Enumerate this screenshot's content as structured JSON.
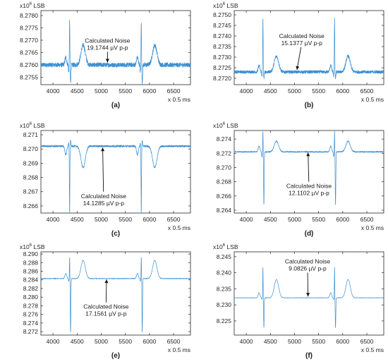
{
  "chart_data": [
    {
      "type": "line",
      "panel_label": "(a)",
      "scale_label": "x10",
      "scale_exp": "6",
      "unit_label": "LSB",
      "xlabel": "x 0.5 ms",
      "xlim": [
        3750,
        6850
      ],
      "ylim": [
        8.2752,
        8.2782
      ],
      "xticks": [
        4000,
        4500,
        5000,
        5500,
        6000,
        6500
      ],
      "xtick_labels": [
        "4000",
        "4500",
        "5000",
        "5500",
        "6000",
        "6500"
      ],
      "yticks": [
        8.2755,
        8.276,
        8.2765,
        8.277,
        8.2775,
        8.278
      ],
      "ytick_labels": [
        "8.2755",
        "8.2760",
        "8.2765",
        "8.2770",
        "8.2775",
        "8.2780"
      ],
      "baseline": 8.276,
      "noise_pp": 0.00019,
      "beats": [
        4345,
        5830
      ],
      "components": [
        {
          "dt": -80,
          "amp": 0.0003,
          "w": 18
        },
        {
          "dt": -20,
          "amp": -0.0003,
          "w": 6
        },
        {
          "dt": 0,
          "amp": 0.0018,
          "w": 5
        },
        {
          "dt": 20,
          "amp": -0.0007,
          "w": 7
        },
        {
          "dt": 280,
          "amp": 0.0008,
          "w": 45
        }
      ],
      "annotation": {
        "line1": "Calculated Noise",
        "line2": "19.1744 µV p-p",
        "x": 5130,
        "y": 8.2769,
        "arrow_x": 5130,
        "arrow_y": 8.2761
      },
      "color": "#3a8fd4"
    },
    {
      "type": "line",
      "panel_label": "(b)",
      "scale_label": "x10",
      "scale_exp": "6",
      "unit_label": "LSB",
      "xlabel": "x 0.5 ms",
      "xlim": [
        3750,
        6850
      ],
      "ylim": [
        8.2717,
        8.2752
      ],
      "xticks": [
        4000,
        4500,
        5000,
        5500,
        6000,
        6500
      ],
      "xtick_labels": [
        "4000",
        "4500",
        "5000",
        "5500",
        "6000",
        "6500"
      ],
      "yticks": [
        8.272,
        8.2725,
        8.273,
        8.2735,
        8.274,
        8.2745,
        8.275
      ],
      "ytick_labels": [
        "8.2720",
        "8.2725",
        "8.2730",
        "8.2735",
        "8.2740",
        "8.2745",
        "8.2750"
      ],
      "baseline": 8.2723,
      "noise_pp": 0.00015,
      "beats": [
        4345,
        5830
      ],
      "components": [
        {
          "dt": -80,
          "amp": 0.0003,
          "w": 18
        },
        {
          "dt": -20,
          "amp": -0.0002,
          "w": 6
        },
        {
          "dt": 0,
          "amp": 0.0025,
          "w": 5
        },
        {
          "dt": 20,
          "amp": -0.0003,
          "w": 7
        },
        {
          "dt": 280,
          "amp": 0.00075,
          "w": 45
        }
      ],
      "annotation": {
        "line1": "Calculated Noise",
        "line2": "15.1377 µV p-p",
        "x": 5150,
        "y": 8.2739,
        "arrow_x": 5050,
        "arrow_y": 8.2724
      },
      "color": "#3a8fd4"
    },
    {
      "type": "line",
      "panel_label": "(c)",
      "scale_label": "x10",
      "scale_exp": "6",
      "unit_label": "LSB",
      "xlabel": "x 0.5 ms",
      "xlim": [
        3750,
        6850
      ],
      "ylim": [
        8.2655,
        8.2713
      ],
      "xticks": [
        4000,
        4500,
        5000,
        5500,
        6000,
        6500
      ],
      "xtick_labels": [
        "4000",
        "4500",
        "5000",
        "5500",
        "6000",
        "6500"
      ],
      "yticks": [
        8.266,
        8.267,
        8.268,
        8.269,
        8.27,
        8.271
      ],
      "ytick_labels": [
        "8.266",
        "8.267",
        "8.268",
        "8.269",
        "8.270",
        "8.271"
      ],
      "baseline": 8.2702,
      "noise_pp": 0.00014,
      "beats": [
        4345,
        5830
      ],
      "components": [
        {
          "dt": -80,
          "amp": -0.0006,
          "w": 18
        },
        {
          "dt": -20,
          "amp": 0.0002,
          "w": 6
        },
        {
          "dt": 0,
          "amp": -0.0047,
          "w": 5
        },
        {
          "dt": 20,
          "amp": 0.0004,
          "w": 7
        },
        {
          "dt": 280,
          "amp": -0.0015,
          "w": 45
        }
      ],
      "annotation": {
        "line1": "Calculated Noise",
        "line2": "14.1285 µV p-p",
        "x": 5050,
        "y": 8.26655,
        "arrow_x": 5030,
        "arrow_y": 8.2701
      },
      "color": "#3a8fd4"
    },
    {
      "type": "line",
      "panel_label": "(d)",
      "scale_label": "x10",
      "scale_exp": "6",
      "unit_label": "LSB",
      "xlabel": "x 0.5 ms",
      "xlim": [
        3750,
        6850
      ],
      "ylim": [
        8.2636,
        8.2752
      ],
      "xticks": [
        4000,
        4500,
        5000,
        5500,
        6000,
        6500
      ],
      "xtick_labels": [
        "4000",
        "4500",
        "5000",
        "5500",
        "6000",
        "6500"
      ],
      "yticks": [
        8.264,
        8.266,
        8.268,
        8.27,
        8.272,
        8.274
      ],
      "ytick_labels": [
        "8.264",
        "8.266",
        "8.268",
        "8.270",
        "8.272",
        "8.274"
      ],
      "baseline": 8.2722,
      "noise_pp": 0.00012,
      "beats": [
        4345,
        5830
      ],
      "components": [
        {
          "dt": -80,
          "amp": 0.0008,
          "w": 18
        },
        {
          "dt": -20,
          "amp": -0.0007,
          "w": 6
        },
        {
          "dt": 0,
          "amp": 0.0029,
          "w": 4
        },
        {
          "dt": 20,
          "amp": -0.0075,
          "w": 6
        },
        {
          "dt": 280,
          "amp": 0.0015,
          "w": 45
        }
      ],
      "annotation": {
        "line1": "Calculated Noise",
        "line2": "12.1102 µV p-p",
        "x": 5300,
        "y": 8.2671,
        "arrow_x": 5280,
        "arrow_y": 8.2721
      },
      "color": "#3a8fd4"
    },
    {
      "type": "line",
      "panel_label": "(e)",
      "scale_label": "x10",
      "scale_exp": "6",
      "unit_label": "LSB",
      "xlabel": "x 0.5 ms",
      "xlim": [
        3750,
        6850
      ],
      "ylim": [
        8.2712,
        8.2905
      ],
      "xticks": [
        4000,
        4500,
        5000,
        5500,
        6000,
        6500
      ],
      "xtick_labels": [
        "4000",
        "4500",
        "5000",
        "5500",
        "6000",
        "6500"
      ],
      "yticks": [
        8.272,
        8.274,
        8.276,
        8.278,
        8.28,
        8.282,
        8.284,
        8.286,
        8.288,
        8.29
      ],
      "ytick_labels": [
        "8.272",
        "8.274",
        "8.276",
        "8.278",
        "8.280",
        "8.282",
        "8.284",
        "8.286",
        "8.288",
        "8.290"
      ],
      "baseline": 8.2843,
      "noise_pp": 8e-05,
      "beats": [
        4345,
        5830
      ],
      "components": [
        {
          "dt": -80,
          "amp": 0.0012,
          "w": 18
        },
        {
          "dt": -20,
          "amp": -0.0006,
          "w": 6
        },
        {
          "dt": 0,
          "amp": 0.005,
          "w": 4
        },
        {
          "dt": 20,
          "amp": -0.0125,
          "w": 6
        },
        {
          "dt": 280,
          "amp": 0.0042,
          "w": 45
        }
      ],
      "annotation": {
        "line1": "Calculated Noise",
        "line2": "17.1561 µV p-p",
        "x": 5100,
        "y": 8.2773,
        "arrow_x": 5110,
        "arrow_y": 8.2841
      },
      "color": "#3a8fd4"
    },
    {
      "type": "line",
      "panel_label": "(f)",
      "scale_label": "x10",
      "scale_exp": "6",
      "unit_label": "LSB",
      "xlabel": "x 0.5 ms",
      "xlim": [
        3750,
        6850
      ],
      "ylim": [
        8.2206,
        8.2465
      ],
      "xticks": [
        4000,
        4500,
        5000,
        5500,
        6000,
        6500
      ],
      "xtick_labels": [
        "4000",
        "4500",
        "5000",
        "5500",
        "6000",
        "6500"
      ],
      "yticks": [
        8.225,
        8.23,
        8.235,
        8.24,
        8.245
      ],
      "ytick_labels": [
        "8.225",
        "8.230",
        "8.235",
        "8.240",
        "8.245"
      ],
      "baseline": 8.2322,
      "noise_pp": 6e-05,
      "beats": [
        4345,
        5830
      ],
      "components": [
        {
          "dt": -80,
          "amp": 0.0016,
          "w": 18
        },
        {
          "dt": -20,
          "amp": -0.0005,
          "w": 6
        },
        {
          "dt": 0,
          "amp": 0.0096,
          "w": 4
        },
        {
          "dt": 20,
          "amp": -0.0093,
          "w": 6
        },
        {
          "dt": 280,
          "amp": 0.0057,
          "w": 45
        }
      ],
      "annotation": {
        "line1": "Calculated Noise",
        "line2": "9.0826 µV p-p",
        "x": 5270,
        "y": 8.2429,
        "arrow_x": 5280,
        "arrow_y": 8.2326
      },
      "color": "#3a8fd4"
    }
  ]
}
